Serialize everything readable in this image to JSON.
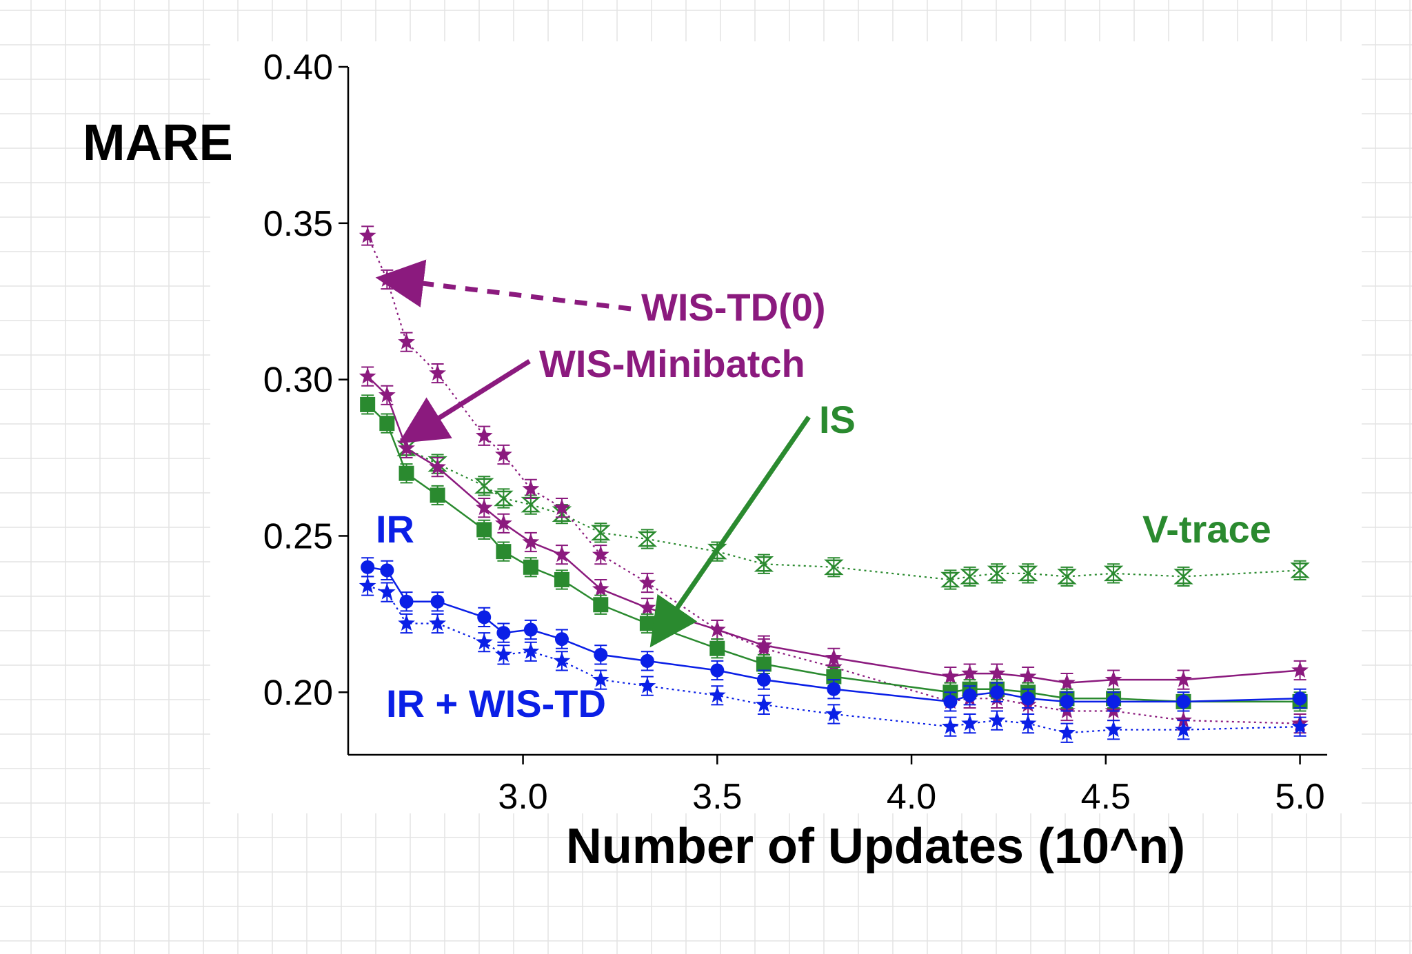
{
  "chart_data": {
    "type": "line",
    "xlabel": "Number of Updates (10^n)",
    "ylabel": "MARE",
    "xlim": [
      2.55,
      5.07
    ],
    "ylim": [
      0.18,
      0.4
    ],
    "xticks": [
      3.0,
      3.5,
      4.0,
      4.5,
      5.0
    ],
    "xtick_labels": [
      "3.0",
      "3.5",
      "4.0",
      "4.5",
      "5.0"
    ],
    "yticks": [
      0.2,
      0.25,
      0.3,
      0.35,
      0.4
    ],
    "ytick_labels": [
      "0.20",
      "0.25",
      "0.30",
      "0.35",
      "0.40"
    ],
    "grid": false,
    "error_bar": 0.003,
    "colors": {
      "purple": "#8b1a7e",
      "green": "#2a8a2f",
      "blue": "#0a1fe6"
    },
    "series": [
      {
        "key": "wis_td0",
        "color": "purple",
        "marker": "star",
        "line": "dotted",
        "x": [
          2.6,
          2.65,
          2.7,
          2.78,
          2.9,
          2.95,
          3.02,
          3.1,
          3.2,
          3.32,
          3.5,
          3.62,
          3.8,
          4.1,
          4.15,
          4.22,
          4.3,
          4.4,
          4.52,
          4.7,
          5.0
        ],
        "y": [
          0.346,
          0.332,
          0.312,
          0.302,
          0.282,
          0.276,
          0.265,
          0.259,
          0.244,
          0.235,
          0.22,
          0.214,
          0.208,
          0.197,
          0.198,
          0.198,
          0.196,
          0.194,
          0.194,
          0.191,
          0.19
        ]
      },
      {
        "key": "wis_minibatch",
        "color": "purple",
        "marker": "star",
        "line": "solid",
        "x": [
          2.6,
          2.65,
          2.7,
          2.78,
          2.9,
          2.95,
          3.02,
          3.1,
          3.2,
          3.32,
          3.5,
          3.62,
          3.8,
          4.1,
          4.15,
          4.22,
          4.3,
          4.4,
          4.52,
          4.7,
          5.0
        ],
        "y": [
          0.301,
          0.295,
          0.278,
          0.272,
          0.259,
          0.254,
          0.248,
          0.244,
          0.233,
          0.227,
          0.22,
          0.215,
          0.211,
          0.205,
          0.206,
          0.206,
          0.205,
          0.203,
          0.204,
          0.204,
          0.207
        ]
      },
      {
        "key": "is",
        "color": "green",
        "marker": "square",
        "line": "solid",
        "x": [
          2.6,
          2.65,
          2.7,
          2.78,
          2.9,
          2.95,
          3.02,
          3.1,
          3.2,
          3.32,
          3.5,
          3.62,
          3.8,
          4.1,
          4.15,
          4.22,
          4.3,
          4.4,
          4.52,
          4.7,
          5.0
        ],
        "y": [
          0.292,
          0.286,
          0.27,
          0.263,
          0.252,
          0.245,
          0.24,
          0.236,
          0.228,
          0.222,
          0.214,
          0.209,
          0.205,
          0.2,
          0.201,
          0.201,
          0.2,
          0.198,
          0.198,
          0.197,
          0.197
        ]
      },
      {
        "key": "v_trace",
        "color": "green",
        "marker": "hourglass",
        "line": "dotted",
        "x": [
          2.7,
          2.78,
          2.9,
          2.95,
          3.02,
          3.1,
          3.2,
          3.32,
          3.5,
          3.62,
          3.8,
          4.1,
          4.15,
          4.22,
          4.3,
          4.4,
          4.52,
          4.7,
          5.0
        ],
        "y": [
          0.278,
          0.273,
          0.266,
          0.262,
          0.26,
          0.257,
          0.251,
          0.249,
          0.245,
          0.241,
          0.24,
          0.236,
          0.237,
          0.238,
          0.238,
          0.237,
          0.238,
          0.237,
          0.239
        ]
      },
      {
        "key": "ir",
        "color": "blue",
        "marker": "circle",
        "line": "solid",
        "x": [
          2.6,
          2.65,
          2.7,
          2.78,
          2.9,
          2.95,
          3.02,
          3.1,
          3.2,
          3.32,
          3.5,
          3.62,
          3.8,
          4.1,
          4.15,
          4.22,
          4.3,
          4.4,
          4.52,
          4.7,
          5.0
        ],
        "y": [
          0.24,
          0.239,
          0.229,
          0.229,
          0.224,
          0.219,
          0.22,
          0.217,
          0.212,
          0.21,
          0.207,
          0.204,
          0.201,
          0.197,
          0.199,
          0.2,
          0.198,
          0.197,
          0.197,
          0.197,
          0.198
        ]
      },
      {
        "key": "ir_wis_td",
        "color": "blue",
        "marker": "star",
        "line": "dotted",
        "x": [
          2.6,
          2.65,
          2.7,
          2.78,
          2.9,
          2.95,
          3.02,
          3.1,
          3.2,
          3.32,
          3.5,
          3.62,
          3.8,
          4.1,
          4.15,
          4.22,
          4.3,
          4.4,
          4.52,
          4.7,
          5.0
        ],
        "y": [
          0.234,
          0.232,
          0.222,
          0.222,
          0.216,
          0.212,
          0.213,
          0.21,
          0.204,
          0.202,
          0.199,
          0.196,
          0.193,
          0.189,
          0.19,
          0.191,
          0.19,
          0.187,
          0.188,
          0.188,
          0.189
        ]
      }
    ],
    "annotations": [
      {
        "key": "wis-td0",
        "text": "WIS-TD(0)",
        "color": "purple",
        "arrow": "dashed",
        "target": [
          2.65,
          0.333
        ]
      },
      {
        "key": "wis-minibatch",
        "text": "WIS-Minibatch",
        "color": "purple",
        "arrow": "solid",
        "target": [
          2.7,
          0.285
        ]
      },
      {
        "key": "is",
        "text": "IS",
        "color": "green",
        "arrow": "solid",
        "target": [
          3.33,
          0.222
        ]
      },
      {
        "key": "v-trace",
        "text": "V-trace",
        "color": "green"
      },
      {
        "key": "ir",
        "text": "IR",
        "color": "blue"
      },
      {
        "key": "ir-wis-td",
        "text": "IR + WIS-TD",
        "color": "blue"
      }
    ]
  }
}
